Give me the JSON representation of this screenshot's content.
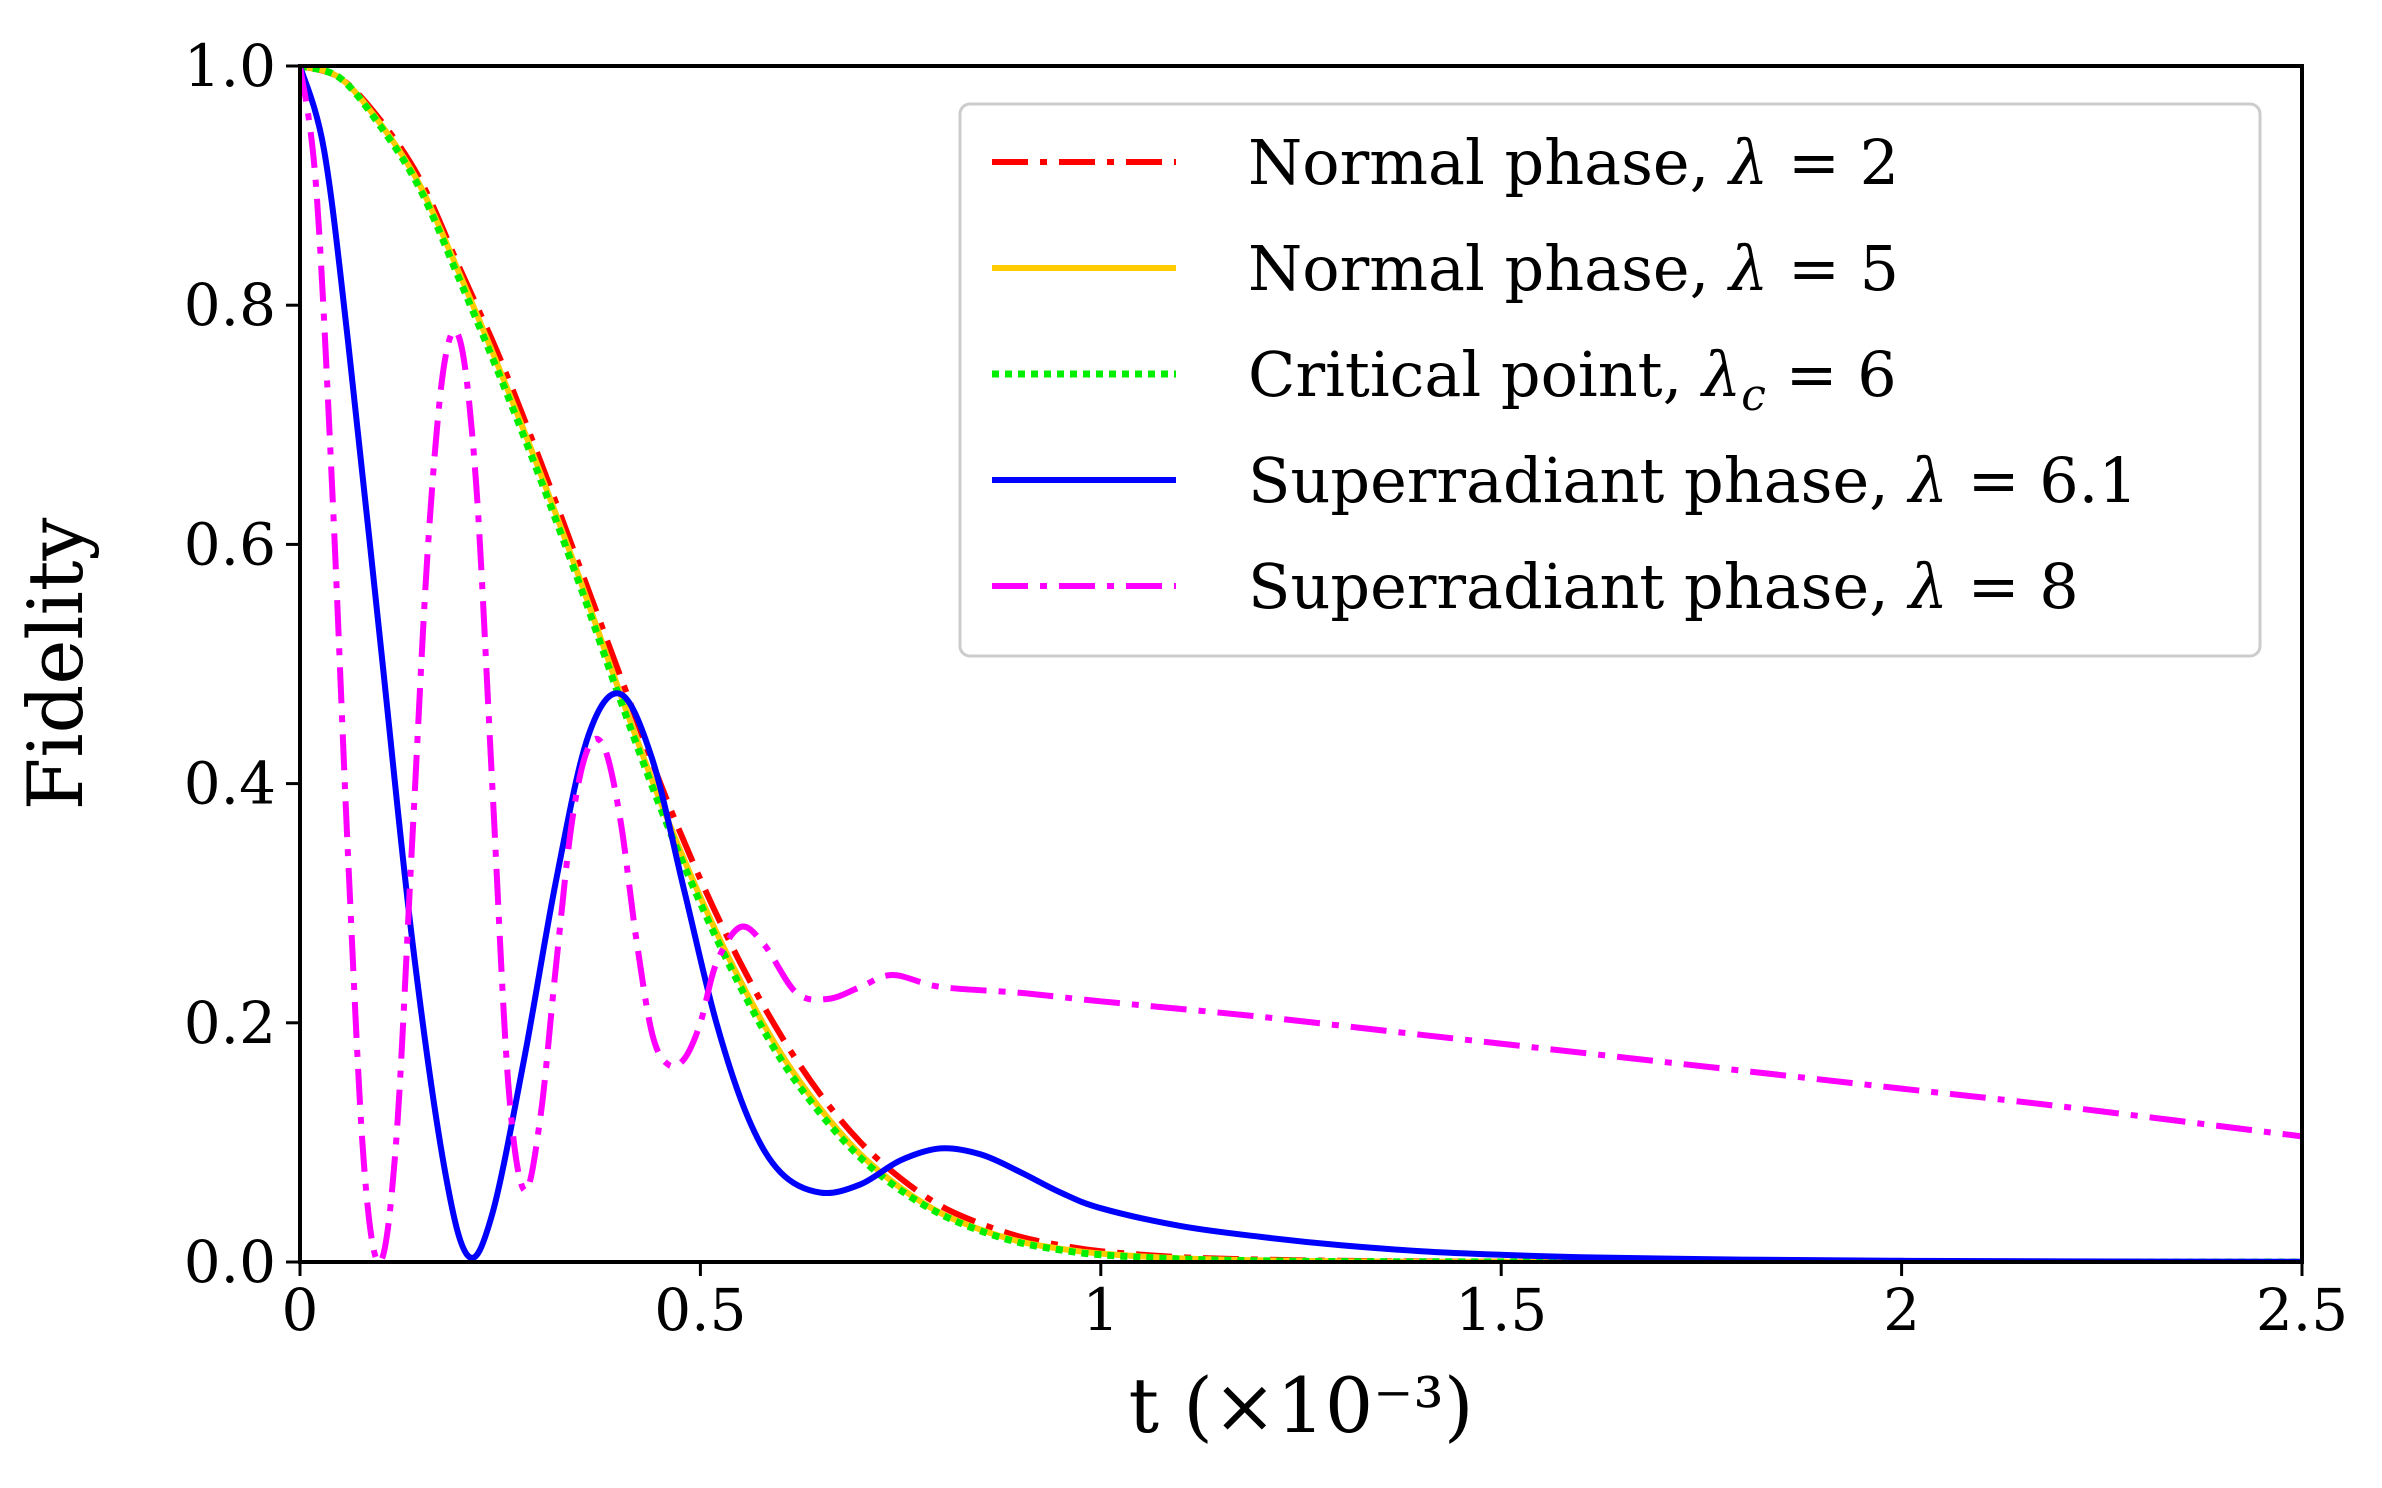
{
  "chart_data": {
    "type": "line",
    "title": "",
    "xlabel": "t (×10⁻³)",
    "ylabel": "Fidelity",
    "xlim": [
      0,
      2.5
    ],
    "ylim": [
      0,
      1.0
    ],
    "grid": false,
    "legend_position": "top-right",
    "x_ticks": [
      0,
      0.5,
      1,
      1.5,
      2,
      2.5
    ],
    "x_tick_labels": [
      "0",
      "0.5",
      "1",
      "1.5",
      "2",
      "2.5"
    ],
    "y_ticks": [
      0,
      0.2,
      0.4,
      0.6,
      0.8,
      1.0
    ],
    "y_tick_labels": [
      "0.0",
      "0.2",
      "0.4",
      "0.6",
      "0.8",
      "1.0"
    ],
    "series": [
      {
        "name": "Normal phase, λ = 2",
        "legend_prefix": "Normal phase, ",
        "legend_symbol": "λ",
        "legend_subscript": "",
        "legend_value": " = 2",
        "color": "#ff0000",
        "style": "dashdot",
        "x": [
          0,
          0.05,
          0.1,
          0.15,
          0.2,
          0.25,
          0.3,
          0.35,
          0.4,
          0.45,
          0.5,
          0.55,
          0.6,
          0.65,
          0.7,
          0.75,
          0.8,
          0.85,
          0.9,
          0.95,
          1.0,
          1.1,
          1.2,
          1.3,
          1.4,
          1.5,
          1.7,
          2.0,
          2.5
        ],
        "y": [
          1.0,
          0.99,
          0.955,
          0.905,
          0.83,
          0.755,
          0.67,
          0.58,
          0.49,
          0.4,
          0.32,
          0.25,
          0.19,
          0.14,
          0.1,
          0.07,
          0.047,
          0.032,
          0.021,
          0.014,
          0.009,
          0.004,
          0.002,
          0.001,
          0.0005,
          0.0002,
          0.0,
          0.0,
          0.0
        ]
      },
      {
        "name": "Normal phase, λ = 5",
        "legend_prefix": "Normal phase, ",
        "legend_symbol": "λ",
        "legend_subscript": "",
        "legend_value": " = 5",
        "color": "#ffcc00",
        "style": "solid",
        "x": [
          0,
          0.05,
          0.1,
          0.15,
          0.2,
          0.25,
          0.3,
          0.35,
          0.4,
          0.45,
          0.5,
          0.55,
          0.6,
          0.65,
          0.7,
          0.75,
          0.8,
          0.85,
          0.9,
          0.95,
          1.0,
          1.1,
          1.2,
          1.3,
          1.4,
          1.5,
          1.7,
          2.0,
          2.5
        ],
        "y": [
          1.0,
          0.99,
          0.952,
          0.9,
          0.825,
          0.745,
          0.66,
          0.57,
          0.475,
          0.385,
          0.305,
          0.235,
          0.175,
          0.128,
          0.09,
          0.062,
          0.041,
          0.027,
          0.017,
          0.011,
          0.007,
          0.003,
          0.0013,
          0.0005,
          0.0002,
          0.0001,
          0.0,
          0.0,
          0.0
        ]
      },
      {
        "name": "Critical point, λc = 6",
        "legend_prefix": "Critical point, ",
        "legend_symbol": "λ",
        "legend_subscript": "c",
        "legend_value": " = 6",
        "color": "#00ee00",
        "style": "dotted",
        "x": [
          0,
          0.05,
          0.1,
          0.15,
          0.2,
          0.25,
          0.3,
          0.35,
          0.4,
          0.45,
          0.5,
          0.55,
          0.6,
          0.65,
          0.7,
          0.75,
          0.8,
          0.85,
          0.9,
          0.95,
          1.0,
          1.1,
          1.2,
          1.3,
          1.4,
          1.5,
          1.7,
          2.0,
          2.5
        ],
        "y": [
          1.0,
          0.99,
          0.95,
          0.897,
          0.82,
          0.74,
          0.655,
          0.565,
          0.47,
          0.38,
          0.3,
          0.23,
          0.17,
          0.124,
          0.087,
          0.06,
          0.04,
          0.026,
          0.016,
          0.01,
          0.006,
          0.0025,
          0.001,
          0.0004,
          0.0002,
          0.0001,
          0.0,
          0.0,
          0.0
        ]
      },
      {
        "name": "Superradiant phase, λ = 6.1",
        "legend_prefix": "Superradiant phase, ",
        "legend_symbol": "λ",
        "legend_subscript": "",
        "legend_value": " = 6.1",
        "color": "#0000ff",
        "style": "solid",
        "x": [
          0,
          0.03,
          0.06,
          0.1,
          0.14,
          0.18,
          0.21,
          0.24,
          0.28,
          0.32,
          0.36,
          0.4,
          0.44,
          0.48,
          0.52,
          0.56,
          0.6,
          0.65,
          0.7,
          0.75,
          0.8,
          0.85,
          0.9,
          0.95,
          1.0,
          1.1,
          1.2,
          1.3,
          1.4,
          1.5,
          1.6,
          1.8,
          2.0,
          2.2,
          2.5
        ],
        "y": [
          1.0,
          0.93,
          0.77,
          0.52,
          0.27,
          0.08,
          0.005,
          0.04,
          0.17,
          0.32,
          0.44,
          0.475,
          0.42,
          0.31,
          0.2,
          0.12,
          0.075,
          0.058,
          0.065,
          0.085,
          0.095,
          0.09,
          0.075,
          0.058,
          0.045,
          0.03,
          0.021,
          0.014,
          0.009,
          0.006,
          0.004,
          0.002,
          0.001,
          0.0005,
          0.0002
        ]
      },
      {
        "name": "Superradiant phase, λ = 8",
        "legend_prefix": "Superradiant phase, ",
        "legend_symbol": "λ",
        "legend_subscript": "",
        "legend_value": " = 8",
        "color": "#ff00ff",
        "style": "dashdot",
        "x": [
          0,
          0.02,
          0.04,
          0.06,
          0.08,
          0.1,
          0.12,
          0.14,
          0.16,
          0.18,
          0.2,
          0.22,
          0.24,
          0.26,
          0.28,
          0.3,
          0.32,
          0.34,
          0.36,
          0.38,
          0.4,
          0.42,
          0.44,
          0.46,
          0.48,
          0.5,
          0.52,
          0.55,
          0.58,
          0.62,
          0.66,
          0.7,
          0.74,
          0.8,
          0.9,
          1.0,
          1.2,
          1.4,
          1.6,
          1.8,
          2.0,
          2.2,
          2.5
        ],
        "y": [
          1.0,
          0.9,
          0.65,
          0.34,
          0.08,
          0.0,
          0.1,
          0.35,
          0.6,
          0.75,
          0.77,
          0.65,
          0.4,
          0.15,
          0.06,
          0.12,
          0.25,
          0.37,
          0.43,
          0.43,
          0.37,
          0.27,
          0.19,
          0.165,
          0.17,
          0.2,
          0.25,
          0.28,
          0.265,
          0.225,
          0.22,
          0.23,
          0.24,
          0.23,
          0.225,
          0.218,
          0.205,
          0.19,
          0.175,
          0.16,
          0.145,
          0.13,
          0.105
        ]
      }
    ]
  }
}
